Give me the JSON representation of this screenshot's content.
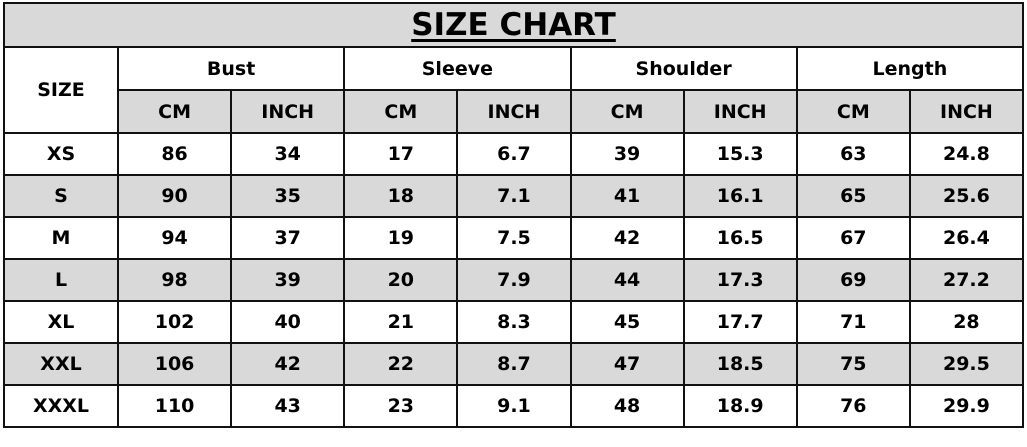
{
  "title": "SIZE CHART",
  "size_header": "SIZE",
  "groups": [
    "Bust",
    "Sleeve",
    "Shoulder",
    "Length"
  ],
  "units": [
    "CM",
    "INCH"
  ],
  "rows": [
    [
      "XS",
      "86",
      "34",
      "17",
      "6.7",
      "39",
      "15.3",
      "63",
      "24.8"
    ],
    [
      "S",
      "90",
      "35",
      "18",
      "7.1",
      "41",
      "16.1",
      "65",
      "25.6"
    ],
    [
      "M",
      "94",
      "37",
      "19",
      "7.5",
      "42",
      "16.5",
      "67",
      "26.4"
    ],
    [
      "L",
      "98",
      "39",
      "20",
      "7.9",
      "44",
      "17.3",
      "69",
      "27.2"
    ],
    [
      "XL",
      "102",
      "40",
      "21",
      "8.3",
      "45",
      "17.7",
      "71",
      "28"
    ],
    [
      "XXL",
      "106",
      "42",
      "22",
      "8.7",
      "47",
      "18.5",
      "75",
      "29.5"
    ],
    [
      "XXXL",
      "110",
      "43",
      "23",
      "9.1",
      "48",
      "18.9",
      "76",
      "29.9"
    ]
  ],
  "colors": {
    "shade": "#d9d9d9",
    "border": "#111111"
  }
}
